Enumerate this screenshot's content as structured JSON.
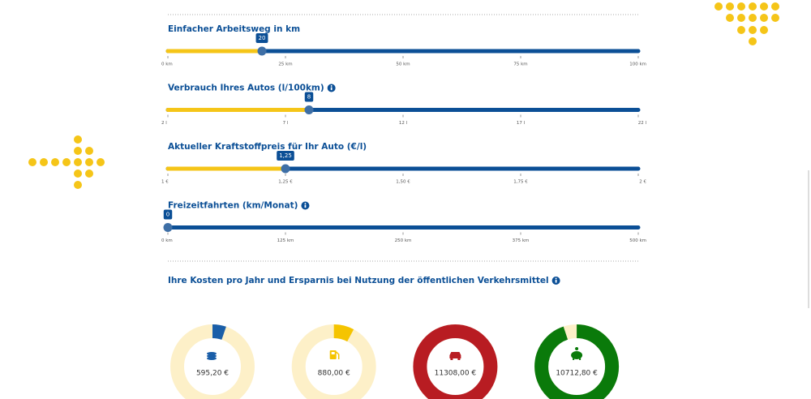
{
  "sliders": [
    {
      "label": "Einfacher Arbeitsweg in km",
      "info": false,
      "value": 20,
      "range": [
        0,
        100
      ],
      "ticks": [
        {
          "value": 0,
          "label": "0 km"
        },
        {
          "value": 25,
          "label": "25 km"
        },
        {
          "value": 50,
          "label": "50 km"
        },
        {
          "value": 75,
          "label": "75 km"
        },
        {
          "value": 100,
          "label": "100 km"
        }
      ]
    },
    {
      "label": "Verbrauch Ihres Autos (l/100km)",
      "info": true,
      "value": 8,
      "range": [
        2,
        22
      ],
      "ticks": [
        {
          "value": 2,
          "label": "2 l"
        },
        {
          "value": 7,
          "label": "7 l"
        },
        {
          "value": 12,
          "label": "12 l"
        },
        {
          "value": 17,
          "label": "17 l"
        },
        {
          "value": 22,
          "label": "22 l"
        }
      ]
    },
    {
      "label": "Aktueller Kraftstoffpreis für Ihr Auto (€/l)",
      "info": false,
      "value": 1.25,
      "value_label": "1,25",
      "range": [
        1,
        2
      ],
      "ticks": [
        {
          "value": 1,
          "label": "1 €"
        },
        {
          "value": 1.25,
          "label": "1,25 €"
        },
        {
          "value": 1.5,
          "label": "1,50 €"
        },
        {
          "value": 1.75,
          "label": "1,75 €"
        },
        {
          "value": 2,
          "label": "2 €"
        }
      ]
    },
    {
      "label": "Freizeitfahrten (km/Monat)",
      "info": true,
      "value": 0,
      "range": [
        0,
        500
      ],
      "ticks": [
        {
          "value": 0,
          "label": "0 km"
        },
        {
          "value": 125,
          "label": "125 km"
        },
        {
          "value": 250,
          "label": "250 km"
        },
        {
          "value": 375,
          "label": "375 km"
        },
        {
          "value": 500,
          "label": "500 km"
        }
      ]
    }
  ],
  "results": {
    "title": "Ihre Kosten pro Jahr und Ersparnis bei Nutzung der öffentlichen Verkehrsmittel",
    "info": true,
    "donuts": [
      {
        "amount": 595.2,
        "label": "595,20 €",
        "color": "#1a5ea8"
      },
      {
        "amount": 880,
        "label": "880,00 €",
        "color": "#f5c400"
      },
      {
        "amount": 11308,
        "label": "11308,00 €",
        "color": "#b81c22"
      },
      {
        "amount": 10712.8,
        "label": "10712,80 €",
        "color": "#0a7a0a"
      }
    ]
  }
}
